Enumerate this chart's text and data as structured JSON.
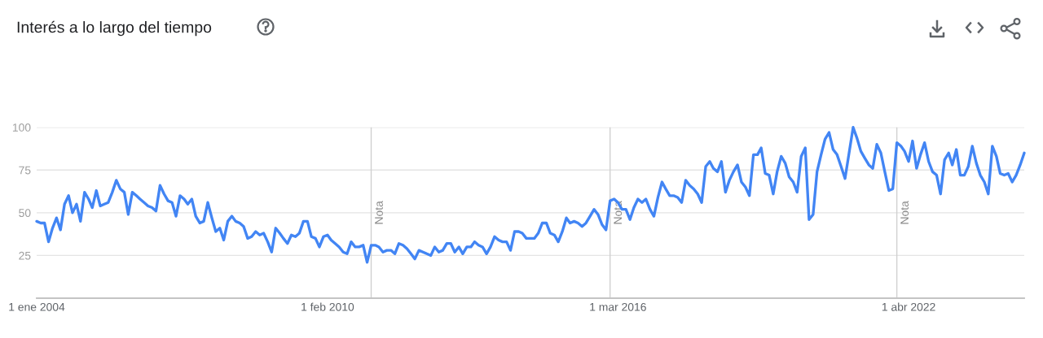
{
  "chart_data": {
    "type": "line",
    "title": "Interés a lo largo del tiempo",
    "x": [
      "2004-01",
      "2004-02",
      "2004-03",
      "2004-04",
      "2004-05",
      "2004-06",
      "2004-07",
      "2004-08",
      "2004-09",
      "2004-10",
      "2004-11",
      "2004-12",
      "2005-01",
      "2005-02",
      "2005-03",
      "2005-04",
      "2005-05",
      "2005-06",
      "2005-07",
      "2005-08",
      "2005-09",
      "2005-10",
      "2005-11",
      "2005-12",
      "2006-01",
      "2006-02",
      "2006-03",
      "2006-04",
      "2006-05",
      "2006-06",
      "2006-07",
      "2006-08",
      "2006-09",
      "2006-10",
      "2006-11",
      "2006-12",
      "2007-01",
      "2007-02",
      "2007-03",
      "2007-04",
      "2007-05",
      "2007-06",
      "2007-07",
      "2007-08",
      "2007-09",
      "2007-10",
      "2007-11",
      "2007-12",
      "2008-01",
      "2008-02",
      "2008-03",
      "2008-04",
      "2008-05",
      "2008-06",
      "2008-07",
      "2008-08",
      "2008-09",
      "2008-10",
      "2008-11",
      "2008-12",
      "2009-01",
      "2009-02",
      "2009-03",
      "2009-04",
      "2009-05",
      "2009-06",
      "2009-07",
      "2009-08",
      "2009-09",
      "2009-10",
      "2009-11",
      "2009-12",
      "2010-01",
      "2010-02",
      "2010-03",
      "2010-04",
      "2010-05",
      "2010-06",
      "2010-07",
      "2010-08",
      "2010-09",
      "2010-10",
      "2010-11",
      "2010-12",
      "2011-01",
      "2011-02",
      "2011-03",
      "2011-04",
      "2011-05",
      "2011-06",
      "2011-07",
      "2011-08",
      "2011-09",
      "2011-10",
      "2011-11",
      "2011-12",
      "2012-01",
      "2012-02",
      "2012-03",
      "2012-04",
      "2012-05",
      "2012-06",
      "2012-07",
      "2012-08",
      "2012-09",
      "2012-10",
      "2012-11",
      "2012-12",
      "2013-01",
      "2013-02",
      "2013-03",
      "2013-04",
      "2013-05",
      "2013-06",
      "2013-07",
      "2013-08",
      "2013-09",
      "2013-10",
      "2013-11",
      "2013-12",
      "2014-01",
      "2014-02",
      "2014-03",
      "2014-04",
      "2014-05",
      "2014-06",
      "2014-07",
      "2014-08",
      "2014-09",
      "2014-10",
      "2014-11",
      "2014-12",
      "2015-01",
      "2015-02",
      "2015-03",
      "2015-04",
      "2015-05",
      "2015-06",
      "2015-07",
      "2015-08",
      "2015-09",
      "2015-10",
      "2015-11",
      "2015-12",
      "2016-01",
      "2016-02",
      "2016-03",
      "2016-04",
      "2016-05",
      "2016-06",
      "2016-07",
      "2016-08",
      "2016-09",
      "2016-10",
      "2016-11",
      "2016-12",
      "2017-01",
      "2017-02",
      "2017-03",
      "2017-04",
      "2017-05",
      "2017-06",
      "2017-07",
      "2017-08",
      "2017-09",
      "2017-10",
      "2017-11",
      "2017-12",
      "2018-01",
      "2018-02",
      "2018-03",
      "2018-04",
      "2018-05",
      "2018-06",
      "2018-07",
      "2018-08",
      "2018-09",
      "2018-10",
      "2018-11",
      "2018-12",
      "2019-01",
      "2019-02",
      "2019-03",
      "2019-04",
      "2019-05",
      "2019-06",
      "2019-07",
      "2019-08",
      "2019-09",
      "2019-10",
      "2019-11",
      "2019-12",
      "2020-01",
      "2020-02",
      "2020-03",
      "2020-04",
      "2020-05",
      "2020-06",
      "2020-07",
      "2020-08",
      "2020-09",
      "2020-10",
      "2020-11",
      "2020-12",
      "2021-01",
      "2021-02",
      "2021-03",
      "2021-04",
      "2021-05",
      "2021-06",
      "2021-07",
      "2021-08",
      "2021-09",
      "2021-10",
      "2021-11",
      "2021-12",
      "2022-01",
      "2022-02",
      "2022-03",
      "2022-04",
      "2022-05",
      "2022-06",
      "2022-07",
      "2022-08",
      "2022-09",
      "2022-10",
      "2022-11",
      "2022-12",
      "2023-01",
      "2023-02",
      "2023-03",
      "2023-04",
      "2023-05",
      "2023-06",
      "2023-07",
      "2023-08",
      "2023-09",
      "2023-10",
      "2023-11",
      "2023-12",
      "2024-01",
      "2024-02",
      "2024-03",
      "2024-04",
      "2024-05",
      "2024-06",
      "2024-07",
      "2024-08",
      "2024-09"
    ],
    "series": [
      {
        "color": "#4285f4",
        "values": [
          45,
          44,
          44,
          33,
          41,
          47,
          40,
          55,
          60,
          50,
          55,
          45,
          62,
          58,
          53,
          63,
          54,
          55,
          56,
          62,
          69,
          64,
          62,
          49,
          62,
          60,
          58,
          56,
          54,
          53,
          51,
          66,
          61,
          57,
          56,
          48,
          60,
          58,
          55,
          58,
          48,
          44,
          45,
          56,
          47,
          39,
          41,
          34,
          45,
          48,
          45,
          44,
          42,
          35,
          36,
          39,
          37,
          38,
          33,
          27,
          41,
          38,
          35,
          32,
          37,
          36,
          38,
          45,
          45,
          36,
          35,
          30,
          36,
          37,
          34,
          32,
          30,
          27,
          26,
          33,
          30,
          30,
          31,
          21,
          31,
          31,
          30,
          27,
          28,
          28,
          26,
          32,
          31,
          29,
          26,
          23,
          28,
          27,
          26,
          25,
          30,
          27,
          28,
          32,
          32,
          27,
          30,
          26,
          30,
          30,
          33,
          31,
          30,
          26,
          30,
          36,
          34,
          33,
          33,
          28,
          39,
          39,
          38,
          35,
          35,
          35,
          38,
          44,
          44,
          38,
          37,
          33,
          39,
          47,
          44,
          45,
          44,
          42,
          44,
          48,
          52,
          49,
          43,
          40,
          57,
          58,
          56,
          52,
          52,
          46,
          53,
          58,
          56,
          58,
          52,
          48,
          59,
          68,
          64,
          60,
          60,
          59,
          56,
          69,
          66,
          64,
          61,
          56,
          77,
          80,
          76,
          74,
          80,
          62,
          69,
          74,
          78,
          68,
          65,
          60,
          84,
          84,
          88,
          73,
          72,
          61,
          74,
          83,
          79,
          71,
          68,
          62,
          83,
          88,
          46,
          49,
          74,
          84,
          93,
          97,
          87,
          84,
          77,
          70,
          85,
          100,
          94,
          86,
          82,
          78,
          76,
          90,
          85,
          74,
          63,
          64,
          91,
          89,
          86,
          80,
          92,
          76,
          84,
          91,
          80,
          74,
          72,
          61,
          81,
          85,
          78,
          87,
          72,
          72,
          77,
          89,
          79,
          72,
          68,
          61,
          89,
          83,
          73,
          72,
          73,
          68,
          72,
          78,
          85
        ]
      }
    ],
    "xlim": [
      "2004-01",
      "2024-09"
    ],
    "xticks": [
      {
        "value": "2004-01-01",
        "label": "1 ene 2004"
      },
      {
        "value": "2010-02-01",
        "label": "1 feb 2010"
      },
      {
        "value": "2016-03-01",
        "label": "1 mar 2016"
      },
      {
        "value": "2022-04-01",
        "label": "1 abr 2022"
      }
    ],
    "ylim": [
      0,
      100
    ],
    "yticks": [
      25,
      50,
      75,
      100
    ],
    "grid": "y",
    "line_style": "solid",
    "ref_lines": [
      {
        "axis": "x",
        "value": "2011-01-01",
        "label": "Nota",
        "color": "#d0d0d0"
      },
      {
        "axis": "x",
        "value": "2016-01-01",
        "label": "Nota",
        "color": "#d0d0d0"
      },
      {
        "axis": "x",
        "value": "2022-01-01",
        "label": "Nota",
        "color": "#d0d0d0"
      }
    ]
  }
}
